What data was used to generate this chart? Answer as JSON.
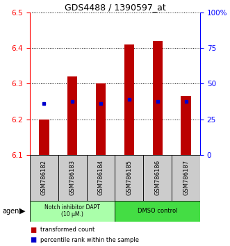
{
  "title": "GDS4488 / 1390597_at",
  "samples": [
    "GSM786182",
    "GSM786183",
    "GSM786184",
    "GSM786185",
    "GSM786186",
    "GSM786187"
  ],
  "bar_bottoms": [
    6.1,
    6.1,
    6.1,
    6.1,
    6.1,
    6.1
  ],
  "bar_tops": [
    6.2,
    6.32,
    6.3,
    6.41,
    6.42,
    6.265
  ],
  "blue_dot_y": [
    6.245,
    6.25,
    6.245,
    6.255,
    6.25,
    6.25
  ],
  "ylim": [
    6.1,
    6.5
  ],
  "yticks": [
    6.1,
    6.2,
    6.3,
    6.4,
    6.5
  ],
  "right_yticks": [
    0,
    25,
    50,
    75,
    100
  ],
  "right_ytick_labels": [
    "0",
    "25",
    "50",
    "75",
    "100%"
  ],
  "bar_color": "#bb0000",
  "dot_color": "#0000cc",
  "group1_label": "Notch inhibitor DAPT\n(10 μM.)",
  "group2_label": "DMSO control",
  "group1_bg": "#aaffaa",
  "group2_bg": "#44dd44",
  "tick_bg": "#cccccc",
  "agent_label": "agent",
  "legend1": "transformed count",
  "legend2": "percentile rank within the sample",
  "group1_indices": [
    0,
    1,
    2
  ],
  "group2_indices": [
    3,
    4,
    5
  ],
  "bar_width": 0.35
}
